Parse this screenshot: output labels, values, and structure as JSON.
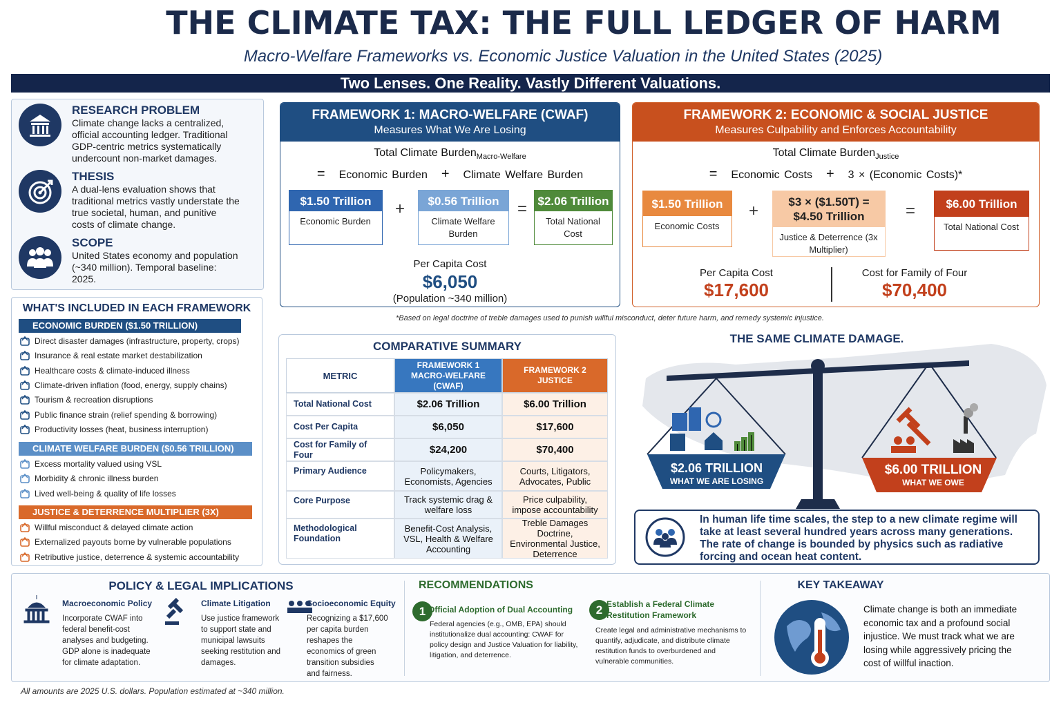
{
  "header": {
    "title": "THE CLIMATE TAX: THE FULL LEDGER OF HARM",
    "subtitle": "Macro-Welfare Frameworks vs. Economic Justice Valuation in the United States (2025)",
    "banner": "Two Lenses. One Reality. Vastly Different Valuations."
  },
  "intro": [
    {
      "heading": "RESEARCH PROBLEM",
      "text": "Climate change lacks a centralized, official accounting ledger. Traditional GDP-centric metrics systematically undercount non-market damages."
    },
    {
      "heading": "THESIS",
      "text": "A dual-lens evaluation shows that traditional metrics vastly understate the true societal, human, and punitive costs of climate change."
    },
    {
      "heading": "SCOPE",
      "text": "United States economy and population (~340 million). Temporal baseline: 2025."
    }
  ],
  "included": {
    "title": "WHAT'S INCLUDED IN EACH FRAMEWORK",
    "groups": [
      {
        "heading": "ECONOMIC BURDEN ($1.50 TRILLION)",
        "items": [
          "Direct disaster damages (infrastructure, property, crops)",
          "Insurance & real estate market destabilization",
          "Healthcare costs & climate-induced illness",
          "Climate-driven inflation (food, energy, supply chains)",
          "Tourism & recreation disruptions",
          "Public finance strain (relief spending & borrowing)",
          "Productivity losses (heat, business interruption)"
        ]
      },
      {
        "heading": "CLIMATE WELFARE BURDEN ($0.56 TRILLION)",
        "items": [
          "Excess mortality valued using VSL",
          "Morbidity & chronic illness burden",
          "Lived well-being & quality of life losses"
        ]
      },
      {
        "heading": "JUSTICE & DETERRENCE MULTIPLIER (3X)",
        "items": [
          "Willful misconduct & delayed climate action",
          "Externalized payouts borne by vulnerable populations",
          "Retributive justice, deterrence & systemic accountability"
        ]
      }
    ]
  },
  "framework1": {
    "title": "FRAMEWORK 1: MACRO-WELFARE (CWAF)",
    "subtitle": "Measures What We Are Losing",
    "formula_lhs": "Total Climate Burden",
    "formula_sub": "Macro-Welfare",
    "formula_rhs": [
      "=",
      "Economic Burden",
      "+",
      "Climate Welfare Burden"
    ],
    "boxes": [
      {
        "value": "$1.50 Trillion",
        "label": "Economic Burden"
      },
      {
        "value": "$0.56 Trillion",
        "label": "Climate Welfare Burden"
      },
      {
        "value": "$2.06 Trillion",
        "label": "Total National Cost"
      }
    ],
    "operators": [
      "+",
      "="
    ],
    "per_capita_label": "Per Capita Cost",
    "per_capita": "$6,050",
    "population": "(Population ~340 million)"
  },
  "framework2": {
    "title": "FRAMEWORK 2: ECONOMIC & SOCIAL JUSTICE",
    "subtitle": "Measures Culpability and Enforces Accountability",
    "formula_lhs": "Total Climate Burden",
    "formula_sub": "Justice",
    "formula_rhs": [
      "=",
      "Economic Costs",
      "+",
      "3 × (Economic Costs)*"
    ],
    "boxes": [
      {
        "value": "$1.50 Trillion",
        "label": "Economic Costs"
      },
      {
        "value": "$3 × ($1.50T) = $4.50 Trillion",
        "label": "Justice & Deterrence (3x Multiplier)"
      },
      {
        "value": "$6.00 Trillion",
        "label": "Total National Cost"
      }
    ],
    "operators": [
      "+",
      "="
    ],
    "per_capita_label": "Per Capita Cost",
    "per_capita": "$17,600",
    "family_label": "Cost for Family of Four",
    "family": "$70,400"
  },
  "footnote": "*Based on legal doctrine of treble damages used to punish willful misconduct, deter future harm, and remedy systemic injustice.",
  "comparison": {
    "title": "COMPARATIVE SUMMARY",
    "headers": [
      "METRIC",
      "FRAMEWORK 1 MACRO-WELFARE (CWAF)",
      "FRAMEWORK 2 JUSTICE"
    ],
    "rows": [
      [
        "Total National Cost",
        "$2.06 Trillion",
        "$6.00 Trillion"
      ],
      [
        "Cost Per Capita",
        "$6,050",
        "$17,600"
      ],
      [
        "Cost for Family of Four",
        "$24,200",
        "$70,400"
      ],
      [
        "Primary Audience",
        "Policymakers, Economists, Agencies",
        "Courts, Litigators, Advocates, Public"
      ],
      [
        "Core Purpose",
        "Track systemic drag & welfare loss",
        "Price culpability, impose accountability"
      ],
      [
        "Methodological Foundation",
        "Benefit-Cost Analysis, VSL, Health & Welfare Accounting",
        "Treble Damages Doctrine, Environmental Justice, Deterrence"
      ]
    ]
  },
  "scale": {
    "title": "THE SAME CLIMATE DAMAGE.",
    "left": {
      "value": "$2.06 TRILLION",
      "caption": "WHAT WE ARE LOSING"
    },
    "right": {
      "value": "$6.00 TRILLION",
      "caption": "WHAT WE OWE"
    }
  },
  "quote": "In human life time scales, the step to a new climate regime will take at least several hundred years across many generations. The rate of change is bounded by physics such as radiative forcing and ocean heat content.",
  "policy": {
    "title": "POLICY & LEGAL IMPLICATIONS",
    "items": [
      {
        "heading": "Macroeconomic Policy",
        "text": "Incorporate CWAF into federal benefit-cost analyses and budgeting. GDP alone is inadequate for climate adaptation."
      },
      {
        "heading": "Climate Litigation",
        "text": "Use justice framework to support state and municipal lawsuits seeking restitution and damages."
      },
      {
        "heading": "Socioeconomic Equity",
        "text": "Recognizing a $17,600 per capita burden reshapes the economics of green transition subsidies and fairness."
      }
    ]
  },
  "recommendations": {
    "title": "RECOMMENDATIONS",
    "items": [
      {
        "number": "1",
        "heading": "Official Adoption of Dual Accounting",
        "text": "Federal agencies (e.g., OMB, EPA) should institutionalize dual accounting: CWAF for policy design and Justice Valuation for liability, litigation, and deterrence."
      },
      {
        "number": "2",
        "heading": "Establish a Federal Climate Restitution Framework",
        "text": "Create legal and administrative mechanisms to quantify, adjudicate, and distribute climate restitution funds to overburdened and vulnerable communities."
      }
    ]
  },
  "takeaway": {
    "title": "KEY TAKEAWAY",
    "text": "Climate change is both an immediate economic tax and a profound social injustice. We must track what we are losing while aggressively pricing the cost of willful inaction."
  },
  "footer": "All amounts are 2025 U.S. dollars. Population estimated at ~340 million."
}
